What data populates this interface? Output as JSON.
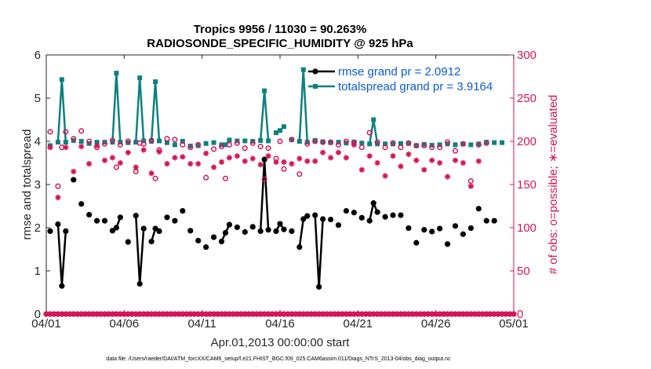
{
  "chart_data": {
    "type": "line",
    "title": "Tropics 9956 / 11030 = 90.263%",
    "subtitle": "RADIOSONDE_SPECIFIC_HUMIDITY @ 925 hPa",
    "xlabel": "Apr.01,2013 00:00:00 start",
    "ylabel_left": "rmse and totalspread",
    "ylabel_right": "# of obs: o=possible; ∗=evaluated",
    "footer": "data file: /Users/raeder/DAI/ATM_forcXX/CAM6_setup/f.e21.FHIST_BGC.f09_025.CAM6assim.011/Diags_NTrS_2013-04/obs_diag_output.nc",
    "x_range_days": [
      0,
      30
    ],
    "ylim_left": [
      0,
      6
    ],
    "ylim_right": [
      0,
      300
    ],
    "x_ticks": [
      {
        "day": 0,
        "label": "04/01"
      },
      {
        "day": 5,
        "label": "04/06"
      },
      {
        "day": 10,
        "label": "04/11"
      },
      {
        "day": 15,
        "label": "04/16"
      },
      {
        "day": 20,
        "label": "04/21"
      },
      {
        "day": 25,
        "label": "04/26"
      },
      {
        "day": 30,
        "label": "05/01"
      }
    ],
    "y_ticks_left": [
      "0",
      "1",
      "2",
      "3",
      "4",
      "5",
      "6"
    ],
    "y_ticks_right": [
      "0",
      "50",
      "100",
      "150",
      "200",
      "250",
      "300"
    ],
    "colors": {
      "rmse": "#000000",
      "spread": "#0e8080",
      "obs": "#d5145a"
    },
    "legend": [
      {
        "label": "rmse grand pr = 2.0912",
        "color": "#000000"
      },
      {
        "label": "totalspread grand pr = 3.9164",
        "color": "#0e8080"
      }
    ],
    "time_days": [
      0,
      0.25,
      0.5,
      0.75,
      1,
      1.25,
      1.5,
      1.75,
      2,
      2.25,
      2.5,
      2.75,
      3,
      3.25,
      3.5,
      3.75,
      4,
      4.25,
      4.5,
      4.75,
      5,
      5.25,
      5.5,
      5.75,
      6,
      6.25,
      6.5,
      6.75,
      7,
      7.25,
      7.5,
      7.75,
      8,
      8.25,
      8.5,
      8.75,
      9,
      9.25,
      9.5,
      9.75,
      10,
      10.25,
      10.5,
      10.75,
      11,
      11.25,
      11.5,
      11.75,
      12,
      12.25,
      12.5,
      12.75,
      13,
      13.25,
      13.5,
      13.75,
      14,
      14.25,
      14.5,
      14.75,
      15,
      15.25,
      15.5,
      15.75,
      16,
      16.25,
      16.5,
      16.75,
      17,
      17.25,
      17.5,
      17.75,
      18,
      18.25,
      18.5,
      18.75,
      19,
      19.25,
      19.5,
      19.75,
      20,
      20.25,
      20.5,
      20.75,
      21,
      21.25,
      21.5,
      21.75,
      22,
      22.25,
      22.5,
      22.75,
      23,
      23.25,
      23.5,
      23.75,
      24,
      24.25,
      24.5,
      24.75,
      25,
      25.25,
      25.5,
      25.75,
      26,
      26.25,
      26.5,
      26.75,
      27,
      27.25,
      27.5,
      27.75,
      28,
      28.25,
      28.5,
      28.75,
      29,
      29.25,
      29.5,
      29.75,
      30
    ],
    "rmse": [
      null,
      1.92,
      null,
      2.08,
      0.65,
      1.92,
      null,
      3.11,
      null,
      2.55,
      null,
      2.3,
      null,
      2.16,
      null,
      2.16,
      null,
      1.93,
      2.0,
      2.24,
      null,
      1.67,
      null,
      2.28,
      0.7,
      1.98,
      null,
      1.68,
      1.98,
      1.92,
      null,
      2.24,
      null,
      2.16,
      null,
      2.39,
      null,
      1.93,
      null,
      1.7,
      null,
      1.55,
      null,
      1.78,
      null,
      1.68,
      1.88,
      2.07,
      null,
      2.01,
      null,
      1.9,
      null,
      2.02,
      null,
      1.92,
      3.58,
      1.95,
      null,
      1.92,
      2.09,
      1.96,
      null,
      1.92,
      null,
      1.55,
      2.2,
      2.27,
      null,
      2.29,
      0.63,
      2.2,
      null,
      2.19,
      null,
      2.06,
      null,
      2.39,
      null,
      2.35,
      null,
      2.23,
      null,
      2.16,
      2.57,
      2.36,
      null,
      2.25,
      null,
      2.29,
      null,
      2.29,
      null,
      1.99,
      null,
      1.65,
      null,
      1.95,
      null,
      1.91,
      null,
      1.98,
      null,
      1.62,
      null,
      2.04,
      null,
      1.85,
      null,
      1.99,
      null,
      2.44,
      null,
      2.16,
      null,
      2.16,
      null
    ],
    "spread": [
      null,
      3.9,
      null,
      3.98,
      5.43,
      3.98,
      null,
      4.02,
      null,
      4.0,
      null,
      3.95,
      null,
      3.98,
      null,
      3.98,
      null,
      3.98,
      5.58,
      3.98,
      null,
      3.97,
      null,
      3.98,
      5.47,
      4.01,
      null,
      4.0,
      5.38,
      4.01,
      null,
      3.97,
      null,
      3.92,
      null,
      4.0,
      null,
      3.89,
      null,
      3.9,
      null,
      3.95,
      null,
      3.97,
      null,
      3.92,
      3.92,
      4.03,
      null,
      4.01,
      null,
      4.01,
      null,
      4.0,
      null,
      4.02,
      5.17,
      4.01,
      null,
      4.2,
      4.25,
      4.34,
      null,
      4.04,
      null,
      4.0,
      5.66,
      3.98,
      null,
      4.02,
      null,
      3.99,
      null,
      3.97,
      null,
      3.98,
      null,
      3.96,
      null,
      3.98,
      null,
      3.96,
      null,
      3.94,
      4.5,
      3.94,
      null,
      3.94,
      null,
      3.94,
      null,
      3.95,
      null,
      3.95,
      null,
      3.9,
      null,
      3.93,
      null,
      3.91,
      null,
      3.92,
      null,
      3.94,
      null,
      3.92,
      null,
      3.94,
      null,
      3.92,
      null,
      3.94,
      null,
      3.98,
      null,
      3.97,
      null,
      3.97,
      null
    ],
    "obs_possible": [
      null,
      211,
      null,
      148,
      193,
      211,
      null,
      203,
      null,
      212,
      null,
      200,
      null,
      193,
      null,
      197,
      null,
      201,
      170,
      196,
      null,
      200,
      null,
      165,
      198,
      197,
      null,
      201,
      157,
      190,
      null,
      203,
      null,
      202,
      null,
      196,
      null,
      193,
      null,
      196,
      null,
      158,
      null,
      191,
      null,
      194,
      157,
      196,
      null,
      198,
      null,
      192,
      null,
      198,
      null,
      194,
      156,
      192,
      null,
      180,
      200,
      168,
      null,
      202,
      null,
      162,
      null,
      197,
      null,
      200,
      null,
      199,
      null,
      199,
      null,
      196,
      null,
      200,
      null,
      199,
      null,
      193,
      null,
      210,
      null,
      199,
      null,
      193,
      null,
      198,
      null,
      193,
      null,
      198,
      null,
      195,
      null,
      195,
      null,
      193,
      null,
      193,
      null,
      199,
      null,
      189,
      null,
      197,
      null,
      154,
      null,
      196,
      null,
      198,
      null
    ],
    "obs_evaluated": [
      null,
      193,
      null,
      135,
      null,
      193,
      null,
      165,
      null,
      194,
      null,
      174,
      null,
      195,
      null,
      178,
      null,
      181,
      null,
      175,
      null,
      187,
      null,
      170,
      null,
      190,
      null,
      163,
      null,
      188,
      null,
      174,
      null,
      181,
      null,
      182,
      null,
      174,
      null,
      174,
      null,
      186,
      null,
      170,
      null,
      176,
      null,
      181,
      null,
      183,
      null,
      177,
      null,
      180,
      null,
      173,
      null,
      183,
      null,
      176,
      null,
      176,
      null,
      174,
      null,
      180,
      null,
      177,
      null,
      177,
      null,
      187,
      null,
      181,
      null,
      187,
      null,
      181,
      null,
      196,
      null,
      167,
      null,
      183,
      null,
      175,
      null,
      160,
      null,
      183,
      null,
      171,
      null,
      185,
      null,
      178,
      null,
      167,
      null,
      178,
      null,
      175,
      null,
      159,
      null,
      178,
      null,
      175,
      null,
      148,
      null,
      177,
      null
    ]
  }
}
